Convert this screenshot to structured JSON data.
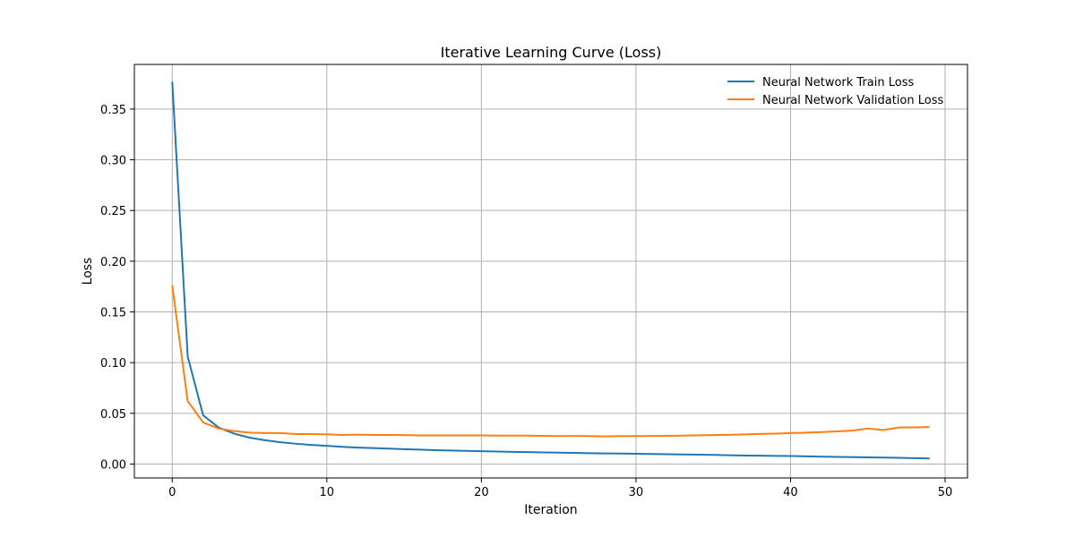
{
  "chart_data": {
    "type": "line",
    "title": "Iterative Learning Curve (Loss)",
    "xlabel": "Iteration",
    "ylabel": "Loss",
    "xlim": [
      -2.45,
      51.45
    ],
    "ylim": [
      -0.0137,
      0.394
    ],
    "xticks": [
      0,
      10,
      20,
      30,
      40,
      50
    ],
    "yticks": [
      0.0,
      0.05,
      0.1,
      0.15,
      0.2,
      0.25,
      0.3,
      0.35
    ],
    "ytick_labels": [
      "0.00",
      "0.05",
      "0.10",
      "0.15",
      "0.20",
      "0.25",
      "0.30",
      "0.35"
    ],
    "grid": true,
    "legend_position": "upper right",
    "x": [
      0,
      1,
      2,
      3,
      4,
      5,
      6,
      7,
      8,
      9,
      10,
      11,
      12,
      13,
      14,
      15,
      16,
      17,
      18,
      19,
      20,
      21,
      22,
      23,
      24,
      25,
      26,
      27,
      28,
      29,
      30,
      31,
      32,
      33,
      34,
      35,
      36,
      37,
      38,
      39,
      40,
      41,
      42,
      43,
      44,
      45,
      46,
      47,
      48,
      49
    ],
    "series": [
      {
        "name": "Neural Network Train Loss",
        "color": "#1f77b4",
        "values": [
          0.377,
          0.106,
          0.048,
          0.036,
          0.03,
          0.026,
          0.0235,
          0.0215,
          0.02,
          0.0188,
          0.018,
          0.017,
          0.0162,
          0.0157,
          0.0152,
          0.0147,
          0.0142,
          0.0137,
          0.0133,
          0.013,
          0.0127,
          0.0123,
          0.012,
          0.0118,
          0.0115,
          0.0112,
          0.011,
          0.0107,
          0.0105,
          0.0103,
          0.0101,
          0.0099,
          0.0097,
          0.0095,
          0.0092,
          0.009,
          0.0087,
          0.0084,
          0.0082,
          0.008,
          0.0079,
          0.0076,
          0.0073,
          0.007,
          0.0068,
          0.0066,
          0.0064,
          0.0061,
          0.0058,
          0.0055
        ]
      },
      {
        "name": "Neural Network Validation Loss",
        "color": "#ff7f0e",
        "values": [
          0.176,
          0.062,
          0.041,
          0.035,
          0.0325,
          0.031,
          0.0305,
          0.0305,
          0.0295,
          0.0295,
          0.0293,
          0.0287,
          0.029,
          0.0287,
          0.0287,
          0.0285,
          0.0282,
          0.0282,
          0.0282,
          0.0282,
          0.0282,
          0.028,
          0.028,
          0.028,
          0.0278,
          0.0275,
          0.0277,
          0.0275,
          0.0272,
          0.0275,
          0.0275,
          0.0277,
          0.0278,
          0.028,
          0.0283,
          0.0285,
          0.0288,
          0.0292,
          0.0296,
          0.03,
          0.0305,
          0.031,
          0.0315,
          0.0322,
          0.033,
          0.035,
          0.0335,
          0.036,
          0.0362,
          0.0365
        ]
      }
    ]
  }
}
